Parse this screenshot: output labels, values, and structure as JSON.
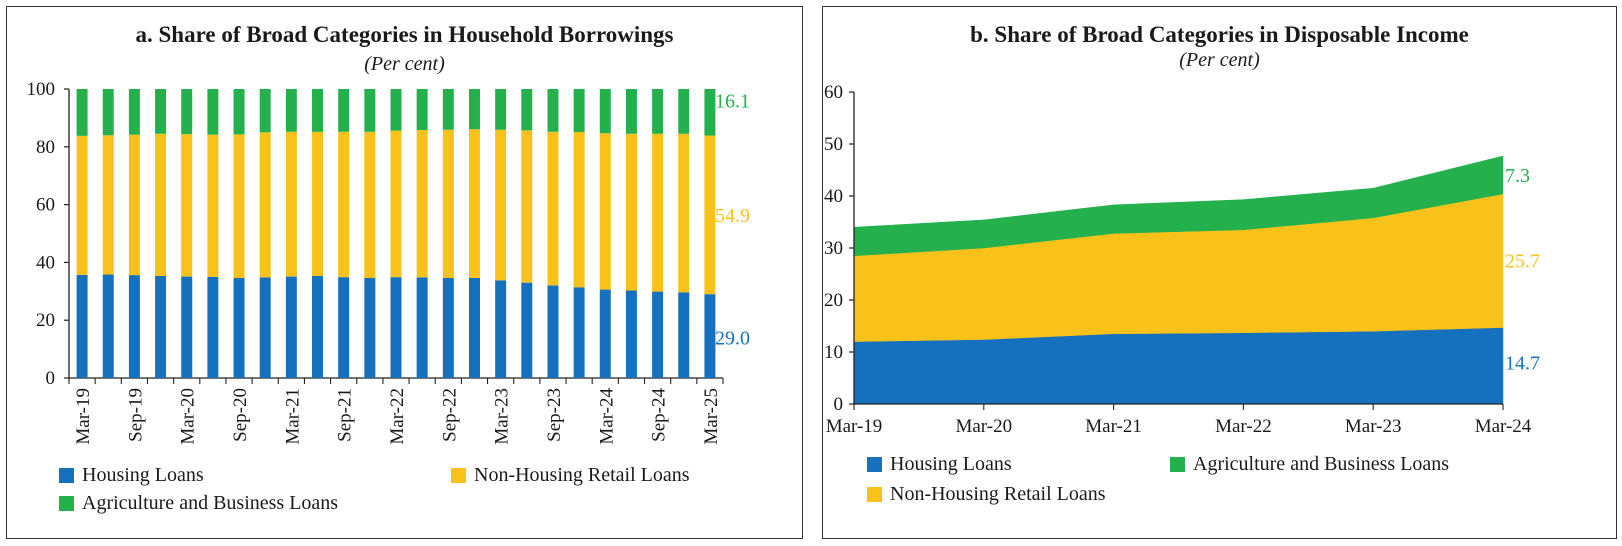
{
  "colors": {
    "housing": "#1570BD",
    "nonhousing": "#F9C21A",
    "agri": "#23B04D",
    "axis": "#222222"
  },
  "chart_data": [
    {
      "type": "bar",
      "stacked": true,
      "title": "a. Share of Broad Categories in Household Borrowings",
      "subtitle": "(Per cent)",
      "ylim": [
        0,
        100
      ],
      "yticks": [
        0,
        20,
        40,
        60,
        80,
        100
      ],
      "categories": [
        "Mar-19",
        "Jun-19",
        "Sep-19",
        "Dec-19",
        "Mar-20",
        "Jun-20",
        "Sep-20",
        "Dec-20",
        "Mar-21",
        "Jun-21",
        "Sep-21",
        "Dec-21",
        "Mar-22",
        "Jun-22",
        "Sep-22",
        "Dec-22",
        "Mar-23",
        "Jun-23",
        "Sep-23",
        "Dec-23",
        "Mar-24",
        "Jun-24",
        "Sep-24",
        "Dec-24",
        "Mar-25"
      ],
      "tick_labels": [
        "Mar-19",
        "Sep-19",
        "Mar-20",
        "Sep-20",
        "Mar-21",
        "Sep-21",
        "Mar-22",
        "Sep-22",
        "Mar-23",
        "Sep-23",
        "Mar-24",
        "Sep-24",
        "Mar-25"
      ],
      "series": [
        {
          "name": "Housing Loans",
          "color_key": "housing",
          "values": [
            35.7,
            35.8,
            35.6,
            35.3,
            35.1,
            35.0,
            34.6,
            34.8,
            35.1,
            35.3,
            34.9,
            34.6,
            34.9,
            34.8,
            34.6,
            34.6,
            33.8,
            33.0,
            32.0,
            31.4,
            30.6,
            30.3,
            29.9,
            29.6,
            29.0
          ]
        },
        {
          "name": "Non-Housing Retail Loans",
          "color_key": "nonhousing",
          "values": [
            48.1,
            48.2,
            48.6,
            49.2,
            49.3,
            49.2,
            49.7,
            50.2,
            50.1,
            49.9,
            50.3,
            50.6,
            50.7,
            51.0,
            51.3,
            51.5,
            52.1,
            52.7,
            53.2,
            53.7,
            54.1,
            54.2,
            54.6,
            54.9,
            54.9
          ]
        },
        {
          "name": "Agriculture and Business Loans",
          "color_key": "agri",
          "values": [
            16.2,
            16.0,
            15.8,
            15.5,
            15.6,
            15.8,
            15.7,
            15.0,
            14.8,
            14.8,
            14.8,
            14.8,
            14.4,
            14.2,
            14.1,
            13.9,
            14.1,
            14.3,
            14.8,
            14.9,
            15.3,
            15.5,
            15.5,
            15.5,
            16.1
          ]
        }
      ],
      "end_labels": [
        {
          "text": "29.0",
          "color_key": "housing"
        },
        {
          "text": "54.9",
          "color_key": "nonhousing"
        },
        {
          "text": "16.1",
          "color_key": "agri"
        }
      ],
      "legend": [
        "Housing Loans",
        "Non-Housing Retail Loans",
        "Agriculture and Business Loans"
      ]
    },
    {
      "type": "area",
      "stacked": true,
      "title": "b. Share of Broad Categories in Disposable Income",
      "subtitle": "(Per cent)",
      "ylim": [
        0,
        60
      ],
      "yticks": [
        0,
        10,
        20,
        30,
        40,
        50,
        60
      ],
      "categories": [
        "Mar-19",
        "Mar-20",
        "Mar-21",
        "Mar-22",
        "Mar-23",
        "Mar-24"
      ],
      "series": [
        {
          "name": "Housing Loans",
          "color_key": "housing",
          "values": [
            12.0,
            12.4,
            13.5,
            13.7,
            14.0,
            14.7
          ]
        },
        {
          "name": "Non-Housing Retail Loans",
          "color_key": "nonhousing",
          "values": [
            16.5,
            17.6,
            19.3,
            19.8,
            21.8,
            25.7
          ]
        },
        {
          "name": "Agriculture and Business Loans",
          "color_key": "agri",
          "values": [
            5.5,
            5.4,
            5.5,
            5.8,
            5.7,
            7.3
          ]
        }
      ],
      "end_labels": [
        {
          "text": "14.7",
          "color_key": "housing"
        },
        {
          "text": "25.7",
          "color_key": "nonhousing"
        },
        {
          "text": "7.3",
          "color_key": "agri"
        }
      ],
      "legend": [
        "Housing Loans",
        "Agriculture and Business Loans",
        "Non-Housing Retail Loans"
      ]
    }
  ]
}
